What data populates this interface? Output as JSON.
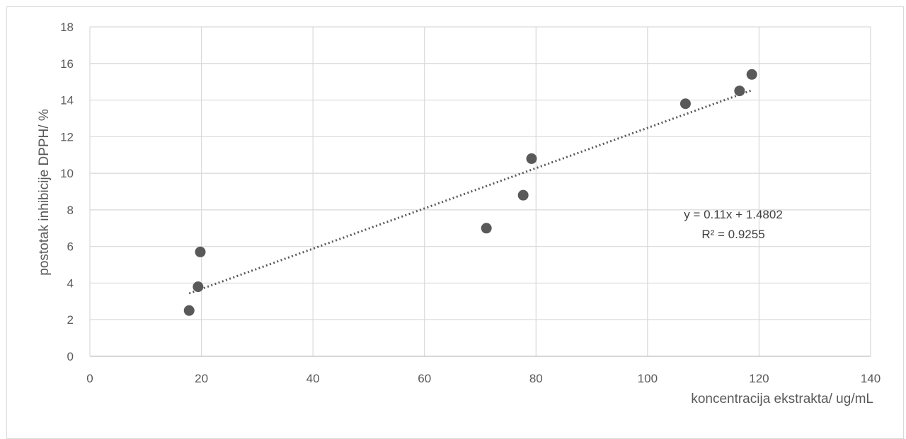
{
  "chart_data": {
    "type": "scatter",
    "title": "",
    "xlabel": "koncentracija ekstrakta/ ug/mL",
    "ylabel": "postotak inhibicije DPPH/ %",
    "xlim": [
      0,
      140
    ],
    "ylim": [
      0,
      18
    ],
    "x_ticks": [
      "0",
      "20",
      "40",
      "60",
      "80",
      "100",
      "120",
      "140"
    ],
    "y_ticks": [
      "0",
      "2",
      "4",
      "6",
      "8",
      "10",
      "12",
      "14",
      "16",
      "18"
    ],
    "grid": true,
    "legend": "none",
    "series": [
      {
        "x": [
          17.8,
          19.4,
          19.8,
          71.1,
          77.7,
          79.2,
          106.8,
          116.5,
          118.7
        ],
        "y": [
          2.5,
          3.8,
          5.7,
          7.0,
          8.8,
          10.8,
          13.8,
          14.5,
          15.4
        ],
        "color": "#595959"
      }
    ],
    "trendline": {
      "type": "linear",
      "slope": 0.11,
      "intercept": 1.4802,
      "x_range": [
        17.8,
        118.7
      ],
      "equation": "y = 0.11x + 1.4802",
      "r_squared": "R² = 0.9255",
      "color": "#595959",
      "style": "dotted"
    },
    "colors": {
      "grid": "#d9d9d9",
      "text": "#595959",
      "marker": "#595959"
    }
  }
}
